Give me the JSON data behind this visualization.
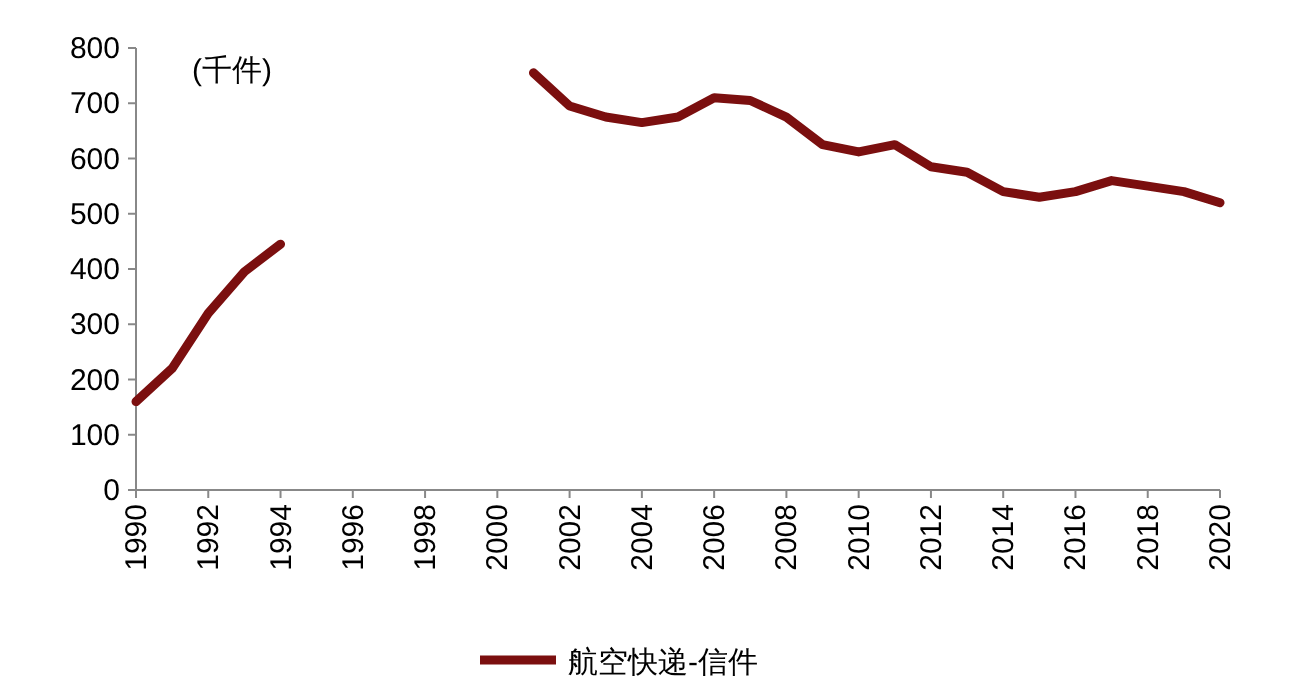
{
  "chart_data": {
    "type": "line",
    "annotations": [
      "(千件)"
    ],
    "x": [
      1990,
      1991,
      1992,
      1993,
      1994,
      1995,
      1996,
      1997,
      1998,
      1999,
      2000,
      2001,
      2002,
      2003,
      2004,
      2005,
      2006,
      2007,
      2008,
      2009,
      2010,
      2011,
      2012,
      2013,
      2014,
      2015,
      2016,
      2017,
      2018,
      2019,
      2020
    ],
    "series": [
      {
        "name": "航空快递-信件",
        "color": "#7b0f0f",
        "values": [
          160,
          220,
          320,
          395,
          445,
          null,
          null,
          null,
          null,
          null,
          null,
          755,
          695,
          675,
          665,
          675,
          710,
          705,
          675,
          625,
          612,
          625,
          585,
          575,
          540,
          530,
          540,
          560,
          550,
          540,
          520
        ]
      }
    ],
    "xlim": [
      1990,
      2020
    ],
    "xticks": [
      1990,
      1992,
      1994,
      1996,
      1998,
      2000,
      2002,
      2004,
      2006,
      2008,
      2010,
      2012,
      2014,
      2016,
      2018,
      2020
    ],
    "ylim": [
      0,
      800
    ],
    "yticks": [
      0,
      100,
      200,
      300,
      400,
      500,
      600,
      700,
      800
    ],
    "grid": false,
    "legend": "bottom",
    "marker": "none",
    "line_style": "solid"
  }
}
